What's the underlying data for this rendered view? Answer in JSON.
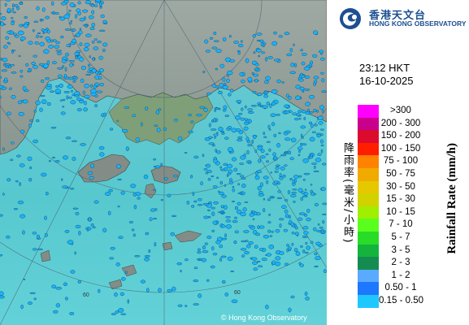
{
  "organization": {
    "name_zh": "香港天文台",
    "name_en": "HONG KONG OBSERVATORY",
    "logo_icon": "hko-swirl-logo-icon"
  },
  "time": "23:12 HKT",
  "date": "16-10-2025",
  "legend": {
    "title_zh": "降雨率(毫米/小時)",
    "title_en": "Rainfall Rate (mm/h)",
    "items": [
      {
        "label": ">300",
        "color": "#ff00ff"
      },
      {
        "label": "200 - 300",
        "color": "#c8008c"
      },
      {
        "label": "150 - 200",
        "color": "#dc0a2d"
      },
      {
        "label": "100 - 150",
        "color": "#ff1e00"
      },
      {
        "label": "75 - 100",
        "color": "#ff8200"
      },
      {
        "label": "50 - 75",
        "color": "#f0aa00"
      },
      {
        "label": "30 - 50",
        "color": "#e6c800"
      },
      {
        "label": "15 - 30",
        "color": "#d2d200"
      },
      {
        "label": "10 - 15",
        "color": "#a0ee00"
      },
      {
        "label": "7 - 10",
        "color": "#5aff1e"
      },
      {
        "label": "5 - 7",
        "color": "#28dc28"
      },
      {
        "label": "3 - 5",
        "color": "#14b43c"
      },
      {
        "label": "2 - 3",
        "color": "#148c50"
      },
      {
        "label": "1 - 2",
        "color": "#5aaaff"
      },
      {
        "label": "0.50 - 1",
        "color": "#1e78ff"
      },
      {
        "label": "0.15 - 0.50",
        "color": "#1ec8ff"
      }
    ]
  },
  "map": {
    "copyright": "© Hong Kong Observatory",
    "range_ring_label": "60",
    "sea_color": "#58c8d0",
    "land_color": "#9aa4a0",
    "rain_color": "#18b4ff"
  }
}
